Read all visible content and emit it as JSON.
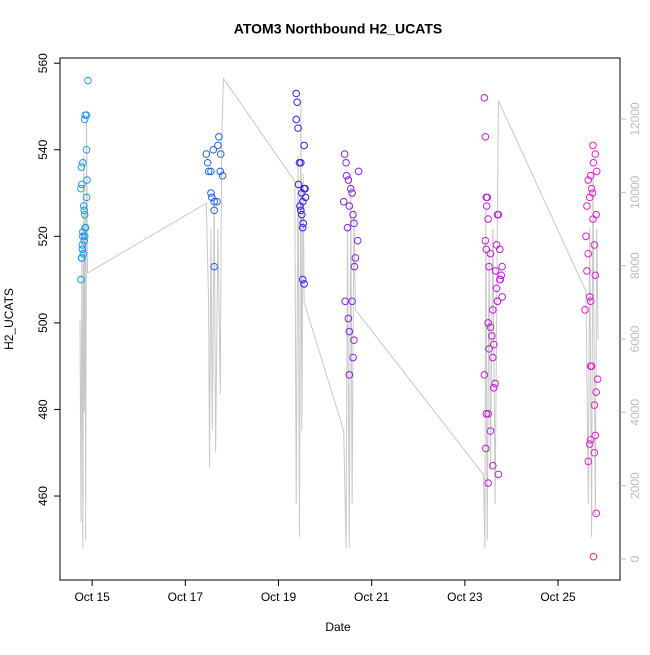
{
  "chart_data": {
    "type": "scatter",
    "title": "ATOM3 Northbound H2_UCATS",
    "x_label": "Date",
    "y_label": "H2_UCATS",
    "xlim": [
      14.31,
      26.33
    ],
    "xticks": [
      {
        "value": 15,
        "label": "Oct 15"
      },
      {
        "value": 17,
        "label": "Oct 17"
      },
      {
        "value": 19,
        "label": "Oct 19"
      },
      {
        "value": 21,
        "label": "Oct 21"
      },
      {
        "value": 23,
        "label": "Oct 23"
      },
      {
        "value": 25,
        "label": "Oct 25"
      }
    ],
    "ylim": [
      440.6,
      561.2
    ],
    "yticks": [
      460,
      480,
      500,
      520,
      540,
      560
    ],
    "y2lim": [
      -573,
      13664
    ],
    "y2ticks": [
      0,
      2000,
      4000,
      6000,
      8000,
      10000,
      12000
    ],
    "y2_color": "#bbbbbb",
    "series": [
      {
        "color": "#1e9be6",
        "x": [
          14.76,
          14.77,
          14.78,
          14.79,
          14.79,
          14.8,
          14.8,
          14.76,
          14.78,
          14.8,
          14.77,
          14.82,
          14.83,
          14.84,
          14.85,
          14.86,
          14.84,
          14.83,
          14.81,
          14.88,
          14.89,
          14.88,
          14.84,
          14.85,
          14.88,
          14.91
        ],
        "values": [
          510,
          515,
          515,
          517,
          518,
          520,
          521,
          531,
          532,
          537,
          536,
          527,
          526,
          525,
          522,
          522,
          520,
          519,
          516,
          529,
          533,
          540,
          547,
          548,
          548,
          556
        ]
      },
      {
        "color": "#2266dd",
        "x": [
          17.45,
          17.48,
          17.5,
          17.55,
          17.6,
          17.55,
          17.57,
          17.62,
          17.68,
          17.62,
          17.62,
          17.7,
          17.72,
          17.76,
          17.75,
          17.8
        ],
        "values": [
          539,
          537,
          535,
          535,
          540,
          530,
          529,
          528,
          528,
          526,
          513,
          541,
          543,
          539,
          535,
          534
        ]
      },
      {
        "color": "#3322dd",
        "x": [
          19.38,
          19.4,
          19.38,
          19.42,
          19.55,
          19.45,
          19.48,
          19.43,
          19.55,
          19.5,
          19.52,
          19.46,
          19.48,
          19.5,
          19.53,
          19.52,
          19.52,
          19.55,
          19.57,
          19.58
        ],
        "values": [
          553,
          551,
          547,
          545,
          541,
          537,
          537,
          532,
          531,
          530,
          528,
          527,
          526,
          525,
          523,
          522,
          510,
          509,
          531,
          529
        ]
      },
      {
        "color": "#8822dd",
        "x": [
          20.42,
          20.45,
          20.46,
          20.5,
          20.55,
          20.58,
          20.4,
          20.52,
          20.6,
          20.62,
          20.48,
          20.7,
          20.65,
          20.63,
          20.43,
          20.58,
          20.5,
          20.52,
          20.62,
          20.6,
          20.52,
          20.72
        ],
        "values": [
          539,
          537,
          534,
          533,
          531,
          530,
          528,
          527,
          525,
          523,
          522,
          519,
          515,
          513,
          505,
          505,
          501,
          498,
          496,
          492,
          488,
          535
        ]
      },
      {
        "color": "#bb22d0",
        "x": [
          23.42,
          23.44,
          23.46,
          23.48,
          23.47,
          23.5,
          23.44,
          23.46,
          23.55,
          23.52,
          23.75,
          23.68,
          23.7,
          23.6,
          23.5,
          23.55,
          23.58,
          23.62,
          23.52,
          23.6,
          23.42,
          23.65,
          23.62,
          23.46,
          23.5,
          23.55,
          23.45,
          23.6,
          23.72,
          23.5,
          23.7,
          23.72,
          23.68,
          23.75,
          23.8,
          23.66,
          23.78,
          23.76,
          23.8,
          23.7
        ],
        "values": [
          552,
          543,
          529,
          529,
          527,
          524,
          519,
          517,
          516,
          513,
          510,
          508,
          505,
          503,
          500,
          499,
          497,
          495,
          494,
          492,
          488,
          486,
          485,
          479,
          479,
          475,
          471,
          467,
          465,
          463,
          525,
          525,
          518,
          517,
          513,
          512,
          511,
          510,
          506,
          505
        ]
      },
      {
        "color": "#e022c8",
        "x": [
          25.75,
          25.8,
          25.76,
          25.83,
          25.7,
          25.65,
          25.72,
          25.74,
          25.68,
          25.62,
          25.82,
          25.75,
          25.6,
          25.78,
          25.65,
          25.62,
          25.8,
          25.68,
          25.7,
          25.58,
          25.72,
          25.7,
          25.85,
          25.82,
          25.78,
          25.8,
          25.7,
          25.68,
          25.78,
          25.65,
          25.82,
          25.76
        ],
        "values": [
          541,
          539,
          537,
          535,
          534,
          533,
          531,
          530,
          529,
          527,
          525,
          524,
          520,
          518,
          516,
          512,
          511,
          506,
          505,
          503,
          490,
          490,
          487,
          484,
          481,
          474,
          473,
          472,
          470,
          468,
          456,
          446
        ]
      },
      {
        "color": "#c8c8c8",
        "mode": "line",
        "axis": "y2",
        "x": [
          14.74,
          14.76,
          14.78,
          14.8,
          14.82,
          14.83,
          14.85,
          14.86,
          14.88,
          14.9,
          17.45,
          17.5,
          17.52,
          17.55,
          17.58,
          17.62,
          17.65,
          17.7,
          17.75,
          17.78,
          17.82,
          19.35,
          19.38,
          19.42,
          19.45,
          19.48,
          19.5,
          19.53,
          19.55,
          20.4,
          20.45,
          20.48,
          20.52,
          20.55,
          20.58,
          20.62,
          20.65,
          23.4,
          23.43,
          23.45,
          23.48,
          23.52,
          23.55,
          23.6,
          23.65,
          23.7,
          23.72,
          25.6,
          25.65,
          25.68,
          25.72,
          25.75,
          25.8,
          25.83,
          25.86
        ],
        "values": [
          6500,
          1000,
          9000,
          300,
          11000,
          4000,
          9500,
          500,
          12000,
          7800,
          9700,
          7000,
          2500,
          9000,
          3500,
          10000,
          2900,
          9000,
          4500,
          11500,
          13100,
          10300,
          1500,
          11000,
          600,
          12500,
          3500,
          10500,
          7000,
          3500,
          300,
          9000,
          300,
          10500,
          1500,
          9500,
          6800,
          2300,
          300,
          9500,
          500,
          8500,
          2500,
          9000,
          1500,
          9500,
          12500,
          7300,
          1500,
          9000,
          600,
          10500,
          1200,
          9000,
          6000
        ]
      }
    ]
  }
}
